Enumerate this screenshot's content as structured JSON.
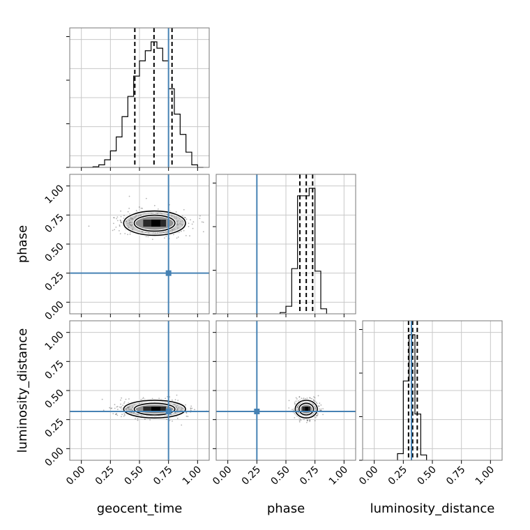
{
  "chart_data": {
    "type": "corner",
    "parameters": [
      "geocent_time",
      "phase",
      "luminosity_distance"
    ],
    "axis_range": [
      -0.1,
      1.1
    ],
    "ticks": [
      0.0,
      0.25,
      0.5,
      0.75,
      1.0
    ],
    "tick_labels": [
      "0.00",
      "0.25",
      "0.50",
      "0.75",
      "1.00"
    ],
    "grid": true,
    "colors": {
      "truth": "#4682b4",
      "histogram": "#000000",
      "quantile": "#000000",
      "scatter": "#000000"
    },
    "truths": {
      "geocent_time": 0.75,
      "phase": 0.25,
      "luminosity_distance": 0.32
    },
    "quantiles": {
      "geocent_time": [
        0.46,
        0.625,
        0.78
      ],
      "phase": [
        0.62,
        0.675,
        0.73
      ],
      "luminosity_distance": [
        0.295,
        0.33,
        0.37
      ]
    },
    "histograms": {
      "geocent_time": {
        "bin_edges": [
          0.0,
          0.05,
          0.1,
          0.15,
          0.2,
          0.25,
          0.3,
          0.35,
          0.4,
          0.45,
          0.5,
          0.55,
          0.6,
          0.65,
          0.7,
          0.75,
          0.8,
          0.85,
          0.9,
          0.95,
          1.0,
          1.05
        ],
        "heights": [
          0,
          0,
          0.005,
          0.02,
          0.06,
          0.13,
          0.24,
          0.4,
          0.56,
          0.72,
          0.84,
          0.92,
          0.99,
          0.94,
          0.84,
          0.62,
          0.42,
          0.26,
          0.12,
          0.02,
          0
        ]
      },
      "phase": {
        "bin_edges": [
          0.45,
          0.5,
          0.55,
          0.6,
          0.65,
          0.7,
          0.75,
          0.8,
          0.85
        ],
        "heights": [
          0.01,
          0.06,
          0.36,
          0.94,
          0.94,
          1.0,
          0.34,
          0.04
        ]
      },
      "luminosity_distance": {
        "bin_edges": [
          0.2,
          0.25,
          0.3,
          0.35,
          0.4,
          0.45
        ],
        "heights": [
          0.05,
          0.6,
          0.95,
          0.35,
          0.04
        ]
      }
    },
    "posterior_2d": {
      "geocent_time_vs_phase": {
        "mean": [
          0.63,
          0.68
        ],
        "std": [
          0.14,
          0.055
        ]
      },
      "geocent_time_vs_luminosity_distance": {
        "mean": [
          0.63,
          0.34
        ],
        "std": [
          0.14,
          0.04
        ]
      },
      "phase_vs_luminosity_distance": {
        "mean": [
          0.675,
          0.34
        ],
        "std": [
          0.05,
          0.04
        ]
      }
    }
  }
}
